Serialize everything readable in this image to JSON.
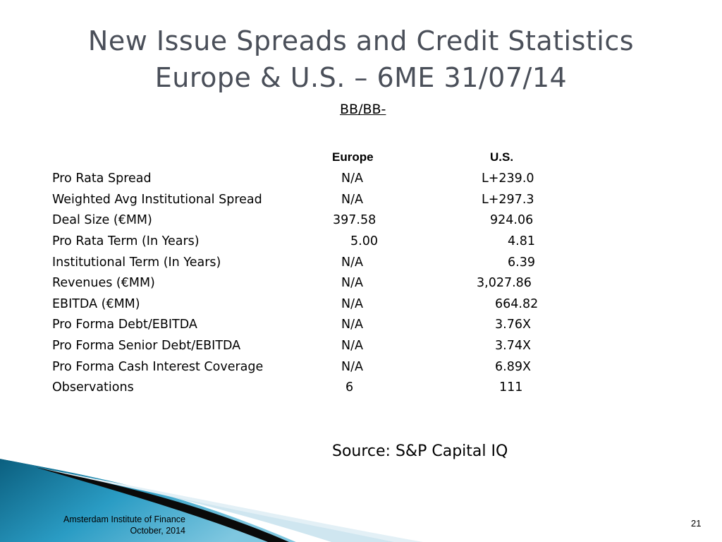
{
  "slide": {
    "title_line1": "New Issue Spreads and Credit Statistics",
    "title_line2": "Europe & U.S. – 6ME 31/07/14",
    "rating": "BB/BB-",
    "columns": {
      "europe": "Europe",
      "us": "U.S."
    },
    "rows": [
      {
        "label": "Pro Rata Spread",
        "europe": "N/A",
        "us": "L+239.0"
      },
      {
        "label": "Weighted Avg Institutional Spread",
        "europe": "N/A",
        "us": "L+297.3"
      },
      {
        "label": "Deal Size (€MM)",
        "europe": "397.58",
        "us": "924.06"
      },
      {
        "label": "Pro Rata Term (In Years)",
        "europe": "5.00",
        "us": "4.81"
      },
      {
        "label": "Institutional Term (In Years)",
        "europe": "N/A",
        "us": "6.39"
      },
      {
        "label": "Revenues (€MM)",
        "europe": "N/A",
        "us": "3,027.86"
      },
      {
        "label": "EBITDA (€MM)",
        "europe": "N/A",
        "us": "664.82"
      },
      {
        "label": "Pro Forma Debt/EBITDA",
        "europe": "N/A",
        "us": "3.76X"
      },
      {
        "label": "Pro Forma Senior Debt/EBITDA",
        "europe": "N/A",
        "us": "3.74X"
      },
      {
        "label": "Pro Forma Cash Interest Coverage",
        "europe": "N/A",
        "us": "6.89X"
      },
      {
        "label": "Observations",
        "europe": "6",
        "us": "111"
      }
    ],
    "source": "Source:  S&P Capital IQ"
  },
  "footer": {
    "org": "Amsterdam Institute of Finance",
    "date": "October, 2014",
    "page": "21"
  },
  "colors": {
    "title": "#4a4f59",
    "wave_dark": "#0b5f7f",
    "wave_mid": "#2a9cc4",
    "wave_light": "#cfe6f0"
  }
}
